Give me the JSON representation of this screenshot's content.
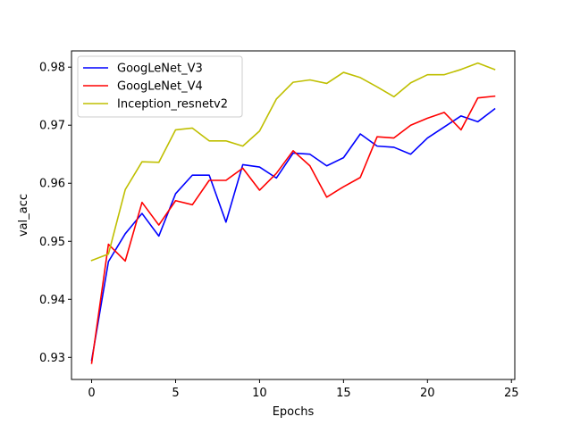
{
  "chart_data": {
    "type": "line",
    "title": "",
    "xlabel": "Epochs",
    "ylabel": "val_acc",
    "xlim": [
      -1.2,
      25.2
    ],
    "ylim": [
      0.9262,
      0.9828
    ],
    "xticks": [
      0,
      5,
      10,
      15,
      20,
      25
    ],
    "yticks": [
      0.93,
      0.94,
      0.95,
      0.96,
      0.97,
      0.98
    ],
    "ytick_labels": [
      "0.93",
      "0.94",
      "0.95",
      "0.96",
      "0.97",
      "0.98"
    ],
    "grid": false,
    "legend_position": "upper left",
    "x": [
      0,
      1,
      2,
      3,
      4,
      5,
      6,
      7,
      8,
      9,
      10,
      11,
      12,
      13,
      14,
      15,
      16,
      17,
      18,
      19,
      20,
      21,
      22,
      23,
      24
    ],
    "series": [
      {
        "name": "GoogLeNet_V3",
        "color": "#0000ff",
        "values": [
          0.9295,
          0.9465,
          0.9513,
          0.9548,
          0.9509,
          0.9582,
          0.9614,
          0.9614,
          0.9533,
          0.9632,
          0.9628,
          0.9609,
          0.9652,
          0.965,
          0.963,
          0.9644,
          0.9685,
          0.9664,
          0.9662,
          0.965,
          0.9678,
          0.9697,
          0.9716,
          0.9706,
          0.9728
        ]
      },
      {
        "name": "GoogLeNet_V4",
        "color": "#ff0000",
        "values": [
          0.929,
          0.9495,
          0.9466,
          0.9567,
          0.9528,
          0.957,
          0.9563,
          0.9605,
          0.9605,
          0.9626,
          0.9588,
          0.9617,
          0.9656,
          0.963,
          0.9576,
          0.9594,
          0.961,
          0.968,
          0.9678,
          0.97,
          0.9712,
          0.9722,
          0.9692,
          0.9747,
          0.975
        ]
      },
      {
        "name": "Inception_resnetv2",
        "color": "#bfbf00",
        "values": [
          0.9467,
          0.9478,
          0.9589,
          0.9637,
          0.9636,
          0.9692,
          0.9695,
          0.9673,
          0.9673,
          0.9664,
          0.969,
          0.9745,
          0.9774,
          0.9778,
          0.9772,
          0.9791,
          0.9782,
          0.9766,
          0.9749,
          0.9773,
          0.9787,
          0.9787,
          0.9796,
          0.9807,
          0.9796
        ]
      }
    ]
  }
}
